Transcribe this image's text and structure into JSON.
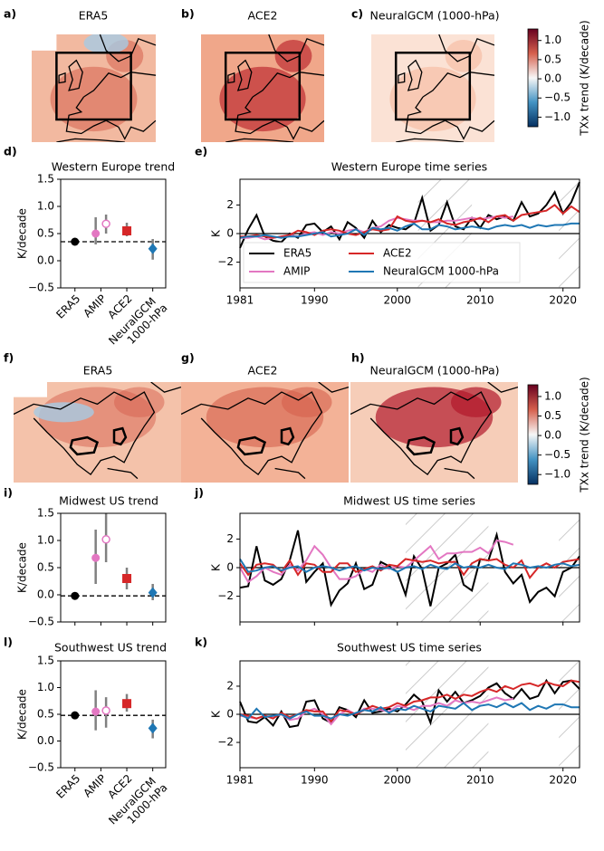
{
  "chart_data": [
    {
      "type": "map",
      "label": "a)",
      "title": "ERA5"
    },
    {
      "type": "map",
      "label": "b)",
      "title": "ACE2"
    },
    {
      "type": "map",
      "label": "c)",
      "title": "NeuralGCM (1000-hPa)"
    },
    {
      "type": "colorbar",
      "label": "TXx trend (K/decade)",
      "colors": [
        "#053061",
        "#4393c3",
        "#f7f7f7",
        "#d6604d",
        "#67001f"
      ],
      "ylim": [
        -1.25,
        1.3
      ],
      "yticks": [
        {
          "value": -1.0,
          "label": "−1.0"
        },
        {
          "value": -0.5,
          "label": "−0.5"
        },
        {
          "value": 0,
          "label": "0.0"
        },
        0.5,
        {
          "value": 1.0,
          "label": "1.0"
        }
      ]
    },
    {
      "type": "trend",
      "label": "d)",
      "title": "Western Europe trend",
      "ylabel": "K/decade",
      "categories": [
        "ERA5",
        "AMIP",
        "ACE2",
        "NeuralGCM 1000-hPa"
      ],
      "xlim": [
        -0.55,
        3.5
      ],
      "ylim": [
        -0.5,
        1.5
      ],
      "yticks": [
        {
          "value": -0.5,
          "label": "−0.5"
        },
        {
          "value": 0,
          "label": "0.0"
        },
        0.5,
        {
          "value": 1.0,
          "label": "1.0"
        },
        1.5
      ],
      "points": [
        {
          "x": 0,
          "value": 0.35,
          "marker": "circle",
          "color": "#000000"
        },
        {
          "x": 0.8,
          "value": 0.5,
          "low": 0.3,
          "high": 0.8,
          "marker": "circle",
          "color": "#e377c2"
        },
        {
          "x": 1.2,
          "value": 0.68,
          "low": 0.5,
          "high": 0.85,
          "marker": "open-circle",
          "color": "#e377c2"
        },
        {
          "x": 2,
          "value": 0.55,
          "low": 0.45,
          "high": 0.7,
          "marker": "square",
          "color": "#d62728"
        },
        {
          "x": 3,
          "value": 0.22,
          "low": 0.02,
          "high": 0.4,
          "marker": "diamond",
          "color": "#1f77b4"
        }
      ]
    },
    {
      "type": "timeseries",
      "label": "e)",
      "title": "Western Europe time series",
      "ylabel": "K",
      "legend": true,
      "reference_line": 0,
      "xlim": [
        1981,
        2022
      ],
      "xticks": [
        1981,
        1990,
        2000,
        2010,
        2020
      ],
      "ylim": [
        -3.8,
        3.8
      ],
      "yticks": [
        {
          "value": -2,
          "label": "−2"
        },
        0,
        2
      ],
      "shaded_spans": [
        [
          2002.5,
          2009
        ],
        [
          2019.5,
          2022
        ]
      ],
      "x": [
        1981,
        1982,
        1983,
        1984,
        1985,
        1986,
        1987,
        1988,
        1989,
        1990,
        1991,
        1992,
        1993,
        1994,
        1995,
        1996,
        1997,
        1998,
        1999,
        2000,
        2001,
        2002,
        2003,
        2004,
        2005,
        2006,
        2007,
        2008,
        2009,
        2010,
        2011,
        2012,
        2013,
        2014,
        2015,
        2016,
        2017,
        2018,
        2019,
        2020,
        2021,
        2022
      ],
      "series": [
        {
          "name": "ERA5",
          "color": "#000000",
          "values": [
            -1.0,
            0.3,
            1.3,
            -0.2,
            -0.5,
            -0.6,
            0.0,
            -0.3,
            0.6,
            0.7,
            0.1,
            0.5,
            -0.4,
            0.8,
            0.4,
            -0.3,
            0.9,
            0.1,
            0.6,
            0.4,
            0.3,
            0.7,
            2.5,
            0.2,
            0.6,
            2.2,
            0.5,
            0.3,
            1.1,
            0.4,
            1.3,
            1.0,
            1.2,
            0.9,
            2.2,
            1.2,
            1.4,
            2.0,
            2.9,
            1.4,
            2.2,
            3.6
          ]
        },
        {
          "name": "AMIP",
          "color": "#e377c2",
          "values": [
            -0.3,
            -0.3,
            -0.2,
            -0.4,
            -0.3,
            -0.2,
            -0.1,
            -0.2,
            0.0,
            0.1,
            -0.1,
            0.1,
            0.0,
            0.2,
            0.3,
            0.1,
            0.4,
            0.5,
            0.9,
            1.1,
            1.0,
            0.9,
            0.9,
            0.8,
            0.8,
            0.9,
            0.9,
            1.0,
            1.1,
            1.0,
            1.1,
            1.2,
            1.1,
            1.2,
            null,
            null,
            null,
            null,
            null,
            null,
            null,
            null
          ]
        },
        {
          "name": "ACE2",
          "color": "#d62728",
          "values": [
            -0.2,
            -0.2,
            -0.1,
            -0.2,
            -0.3,
            -0.2,
            -0.1,
            0.2,
            0.1,
            -0.1,
            0.2,
            0.3,
            0.2,
            0.0,
            -0.1,
            0.1,
            0.3,
            0.2,
            0.3,
            1.2,
            0.9,
            0.8,
            0.9,
            0.8,
            1.0,
            0.7,
            0.6,
            0.8,
            0.9,
            1.1,
            0.8,
            1.2,
            1.3,
            0.9,
            1.3,
            1.4,
            1.5,
            1.6,
            2.0,
            1.4,
            1.9,
            1.5
          ]
        },
        {
          "name": "NeuralGCM 1000-hPa",
          "color": "#1f77b4",
          "values": [
            -0.3,
            -0.2,
            -0.2,
            -0.1,
            -0.2,
            -0.3,
            -0.2,
            -0.2,
            -0.1,
            0.0,
            0.1,
            -0.2,
            -0.1,
            0.0,
            0.3,
            -0.1,
            0.4,
            0.3,
            0.4,
            0.2,
            0.5,
            0.7,
            0.3,
            0.3,
            0.6,
            0.5,
            0.3,
            0.4,
            0.5,
            0.4,
            0.3,
            0.5,
            0.6,
            0.5,
            0.6,
            0.4,
            0.6,
            0.5,
            0.6,
            0.6,
            0.7,
            0.7
          ]
        }
      ]
    },
    {
      "type": "map",
      "label": "f)",
      "title": "ERA5"
    },
    {
      "type": "map",
      "label": "g)",
      "title": "ACE2"
    },
    {
      "type": "map",
      "label": "h)",
      "title": "NeuralGCM (1000-hPa)"
    },
    {
      "type": "colorbar",
      "label": "TXx trend (K/decade)",
      "colors": [
        "#053061",
        "#4393c3",
        "#f7f7f7",
        "#d6604d",
        "#67001f"
      ],
      "ylim": [
        -1.25,
        1.3
      ],
      "yticks": [
        {
          "value": -1.0,
          "label": "−1.0"
        },
        {
          "value": -0.5,
          "label": "−0.5"
        },
        {
          "value": 0,
          "label": "0.0"
        },
        0.5,
        {
          "value": 1.0,
          "label": "1.0"
        }
      ]
    },
    {
      "type": "trend",
      "label": "i)",
      "title": "Midwest US trend",
      "ylabel": "K/decade",
      "categories": [
        null,
        null,
        null,
        null
      ],
      "xlim": [
        -0.55,
        3.5
      ],
      "ylim": [
        -0.5,
        1.5
      ],
      "yticks": [
        {
          "value": -0.5,
          "label": "−0.5"
        },
        {
          "value": 0,
          "label": "0.0"
        },
        0.5,
        {
          "value": 1.0,
          "label": "1.0"
        },
        1.5
      ],
      "points": [
        {
          "x": 0,
          "value": -0.02,
          "marker": "circle",
          "color": "#000000"
        },
        {
          "x": 0.8,
          "value": 0.68,
          "low": 0.2,
          "high": 1.2,
          "marker": "circle",
          "color": "#e377c2"
        },
        {
          "x": 1.2,
          "value": 1.02,
          "low": 0.6,
          "high": 1.5,
          "marker": "open-circle",
          "color": "#e377c2"
        },
        {
          "x": 2,
          "value": 0.3,
          "low": 0.1,
          "high": 0.5,
          "marker": "square",
          "color": "#d62728"
        },
        {
          "x": 3,
          "value": 0.04,
          "low": -0.1,
          "high": 0.2,
          "marker": "diamond",
          "color": "#1f77b4"
        }
      ]
    },
    {
      "type": "timeseries",
      "label": "j)",
      "title": "Midwest US time series",
      "ylabel": "K",
      "legend": false,
      "reference_line": 0,
      "xtick_labels": false,
      "xlim": [
        1981,
        2022
      ],
      "xticks": [
        1981,
        1990,
        2000,
        2010,
        2020
      ],
      "ylim": [
        -3.8,
        3.8
      ],
      "yticks": [
        {
          "value": -2,
          "label": "−2"
        },
        0,
        2
      ],
      "shaded_spans": [
        [
          2001,
          2011
        ],
        [
          2019.5,
          2022
        ]
      ],
      "x": [
        1981,
        1982,
        1983,
        1984,
        1985,
        1986,
        1987,
        1988,
        1989,
        1990,
        1991,
        1992,
        1993,
        1994,
        1995,
        1996,
        1997,
        1998,
        1999,
        2000,
        2001,
        2002,
        2003,
        2004,
        2005,
        2006,
        2007,
        2008,
        2009,
        2010,
        2011,
        2012,
        2013,
        2014,
        2015,
        2016,
        2017,
        2018,
        2019,
        2020,
        2021,
        2022
      ],
      "series": [
        {
          "color": "#000000",
          "values": [
            -1.4,
            -1.3,
            1.5,
            -0.9,
            -1.2,
            -0.8,
            0.5,
            2.6,
            -1.0,
            -0.3,
            0.3,
            -2.6,
            -1.6,
            -1.1,
            0.3,
            -1.5,
            -1.2,
            0.4,
            0.1,
            -0.3,
            -1.9,
            0.8,
            -0.1,
            -2.7,
            0.0,
            0.3,
            0.9,
            -1.2,
            -1.6,
            0.6,
            0.5,
            2.3,
            -0.3,
            -1.1,
            -0.5,
            -2.4,
            -1.7,
            -1.4,
            -2.0,
            -0.3,
            0.0,
            0.8
          ]
        },
        {
          "color": "#e377c2",
          "values": [
            0.0,
            -1.0,
            -0.6,
            0.0,
            -0.3,
            -0.5,
            0.2,
            -0.2,
            0.5,
            1.5,
            0.9,
            0.0,
            -0.8,
            -0.8,
            -0.6,
            -0.1,
            -0.3,
            0.2,
            -0.1,
            0.1,
            0.0,
            0.5,
            1.0,
            1.5,
            0.6,
            1.0,
            1.0,
            1.1,
            1.1,
            1.4,
            1.0,
            1.9,
            1.8,
            1.6,
            null,
            null,
            null,
            null,
            null,
            null,
            null,
            null
          ]
        },
        {
          "color": "#d62728",
          "values": [
            0.3,
            -0.5,
            0.2,
            0.3,
            0.2,
            -0.3,
            0.5,
            -0.5,
            0.3,
            0.2,
            -0.3,
            -0.3,
            0.3,
            0.3,
            -0.3,
            -0.1,
            0.1,
            -0.2,
            0.2,
            0.1,
            0.6,
            0.5,
            0.4,
            0.5,
            0.3,
            0.4,
            0.4,
            -0.5,
            0.3,
            0.6,
            0.5,
            0.6,
            0.2,
            0.0,
            0.5,
            -0.7,
            0.0,
            0.3,
            0.0,
            0.4,
            0.5,
            0.6
          ]
        },
        {
          "color": "#1f77b4",
          "values": [
            0.6,
            -0.3,
            -0.2,
            0.0,
            0.1,
            -0.2,
            0.0,
            0.1,
            -0.3,
            0.0,
            0.1,
            0.0,
            -0.2,
            0.0,
            0.1,
            -0.2,
            0.0,
            -0.1,
            0.0,
            -0.3,
            0.0,
            0.1,
            -0.1,
            0.2,
            0.0,
            -0.1,
            0.3,
            0.0,
            0.1,
            0.0,
            0.2,
            0.0,
            -0.1,
            0.3,
            0.2,
            0.0,
            0.1,
            0.0,
            0.2,
            0.3,
            0.1,
            0.2
          ]
        }
      ]
    },
    {
      "type": "trend",
      "label": "l)",
      "title": "Southwest US trend",
      "ylabel": "K/decade",
      "categories": [
        "ERA5",
        "AMIP",
        "ACE2",
        "NeuralGCM 1000-hPa"
      ],
      "xlim": [
        -0.55,
        3.5
      ],
      "ylim": [
        -0.5,
        1.5
      ],
      "yticks": [
        {
          "value": -0.5,
          "label": "−0.5"
        },
        {
          "value": 0,
          "label": "0.0"
        },
        0.5,
        {
          "value": 1.0,
          "label": "1.0"
        },
        1.5
      ],
      "points": [
        {
          "x": 0,
          "value": 0.48,
          "marker": "circle",
          "color": "#000000"
        },
        {
          "x": 0.8,
          "value": 0.55,
          "low": 0.2,
          "high": 0.95,
          "marker": "circle",
          "color": "#e377c2"
        },
        {
          "x": 1.2,
          "value": 0.57,
          "low": 0.25,
          "high": 0.82,
          "marker": "open-circle",
          "color": "#e377c2"
        },
        {
          "x": 2,
          "value": 0.7,
          "low": 0.55,
          "high": 0.88,
          "marker": "square",
          "color": "#d62728"
        },
        {
          "x": 3,
          "value": 0.24,
          "low": 0.05,
          "high": 0.4,
          "marker": "diamond",
          "color": "#1f77b4"
        }
      ]
    },
    {
      "type": "timeseries",
      "label": "k)",
      "title": "Southwest US time series",
      "ylabel": "K",
      "legend": false,
      "reference_line": 0,
      "xlim": [
        1981,
        2022
      ],
      "xticks": [
        1981,
        1990,
        2000,
        2010,
        2020
      ],
      "ylim": [
        -3.8,
        3.8
      ],
      "yticks": [
        {
          "value": -2,
          "label": "−2"
        },
        0,
        2
      ],
      "shaded_spans": [
        [
          2001,
          2011
        ],
        [
          2019.5,
          2022
        ]
      ],
      "x": [
        1981,
        1982,
        1983,
        1984,
        1985,
        1986,
        1987,
        1988,
        1989,
        1990,
        1991,
        1992,
        1993,
        1994,
        1995,
        1996,
        1997,
        1998,
        1999,
        2000,
        2001,
        2002,
        2003,
        2004,
        2005,
        2006,
        2007,
        2008,
        2009,
        2010,
        2011,
        2012,
        2013,
        2014,
        2015,
        2016,
        2017,
        2018,
        2019,
        2020,
        2021,
        2022
      ],
      "series": [
        {
          "color": "#000000",
          "values": [
            0.9,
            -0.5,
            -0.6,
            -0.2,
            -0.8,
            0.2,
            -0.9,
            -0.8,
            0.9,
            1.0,
            -0.3,
            -0.6,
            0.5,
            0.3,
            -0.2,
            1.0,
            0.1,
            0.2,
            0.4,
            0.2,
            0.7,
            1.4,
            0.9,
            -0.6,
            1.7,
            0.9,
            1.6,
            0.8,
            1.0,
            1.3,
            1.9,
            2.2,
            1.5,
            1.1,
            1.8,
            1.1,
            1.3,
            2.4,
            1.5,
            2.3,
            2.4,
            1.8
          ]
        },
        {
          "color": "#e377c2",
          "values": [
            -0.1,
            -0.2,
            -0.3,
            -0.1,
            -0.2,
            0.0,
            -0.4,
            -0.3,
            0.2,
            0.4,
            0.0,
            -0.7,
            0.0,
            0.3,
            0.0,
            0.4,
            0.4,
            0.3,
            0.2,
            0.6,
            0.5,
            0.3,
            0.6,
            0.6,
            0.8,
            0.6,
            1.0,
            0.8,
            0.9,
            0.8,
            1.0,
            1.2,
            1.0,
            1.1,
            null,
            null,
            null,
            null,
            null,
            null,
            null,
            null
          ]
        },
        {
          "color": "#d62728",
          "values": [
            0.0,
            -0.1,
            -0.3,
            -0.1,
            -0.3,
            0.1,
            -0.2,
            0.0,
            0.3,
            0.2,
            0.2,
            -0.5,
            0.3,
            0.2,
            0.0,
            0.3,
            0.6,
            0.4,
            0.5,
            0.8,
            0.6,
            0.9,
            1.0,
            1.2,
            1.2,
            1.4,
            1.1,
            1.4,
            1.3,
            1.6,
            1.8,
            1.6,
            2.0,
            1.8,
            2.1,
            2.2,
            2.0,
            2.3,
            2.1,
            2.0,
            2.4,
            2.3
          ]
        },
        {
          "color": "#1f77b4",
          "values": [
            0.0,
            -0.3,
            0.4,
            -0.2,
            -0.1,
            0.0,
            -0.3,
            0.0,
            0.2,
            -0.1,
            -0.1,
            -0.3,
            0.0,
            -0.1,
            0.1,
            0.3,
            0.2,
            0.5,
            0.1,
            0.4,
            0.3,
            0.6,
            0.4,
            0.2,
            0.6,
            0.5,
            0.4,
            0.8,
            0.3,
            0.6,
            0.7,
            0.5,
            0.8,
            0.5,
            0.8,
            0.3,
            0.6,
            0.4,
            0.7,
            0.7,
            0.5,
            0.5
          ]
        }
      ]
    }
  ]
}
